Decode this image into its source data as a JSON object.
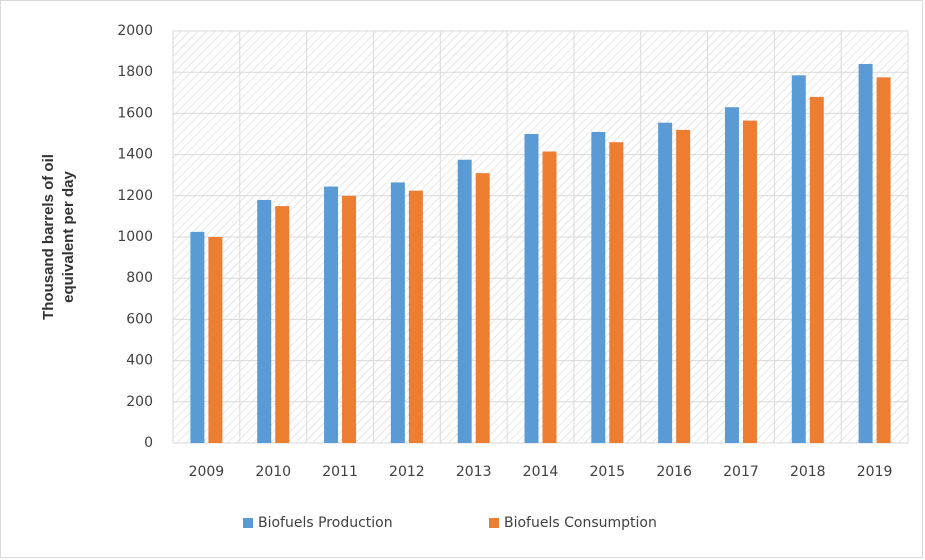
{
  "chart_data": {
    "type": "bar",
    "y_label": [
      "Thousand barrels of oil",
      "equivalent per day"
    ],
    "categories": [
      "2009",
      "2010",
      "2011",
      "2012",
      "2013",
      "2014",
      "2015",
      "2016",
      "2017",
      "2018",
      "2019"
    ],
    "series": [
      {
        "name": "Biofuels Production",
        "color": "#5b9bd5",
        "values": [
          1025,
          1180,
          1245,
          1265,
          1375,
          1500,
          1510,
          1555,
          1630,
          1785,
          1840
        ]
      },
      {
        "name": "Biofuels Consumption",
        "color": "#ed7d31",
        "values": [
          1000,
          1150,
          1200,
          1225,
          1310,
          1415,
          1460,
          1520,
          1565,
          1680,
          1775
        ]
      }
    ],
    "ylim": [
      0,
      2000
    ],
    "yticks": [
      0,
      200,
      400,
      600,
      800,
      1000,
      1200,
      1400,
      1600,
      1800,
      2000
    ],
    "grid": true,
    "legend": "bottom"
  }
}
